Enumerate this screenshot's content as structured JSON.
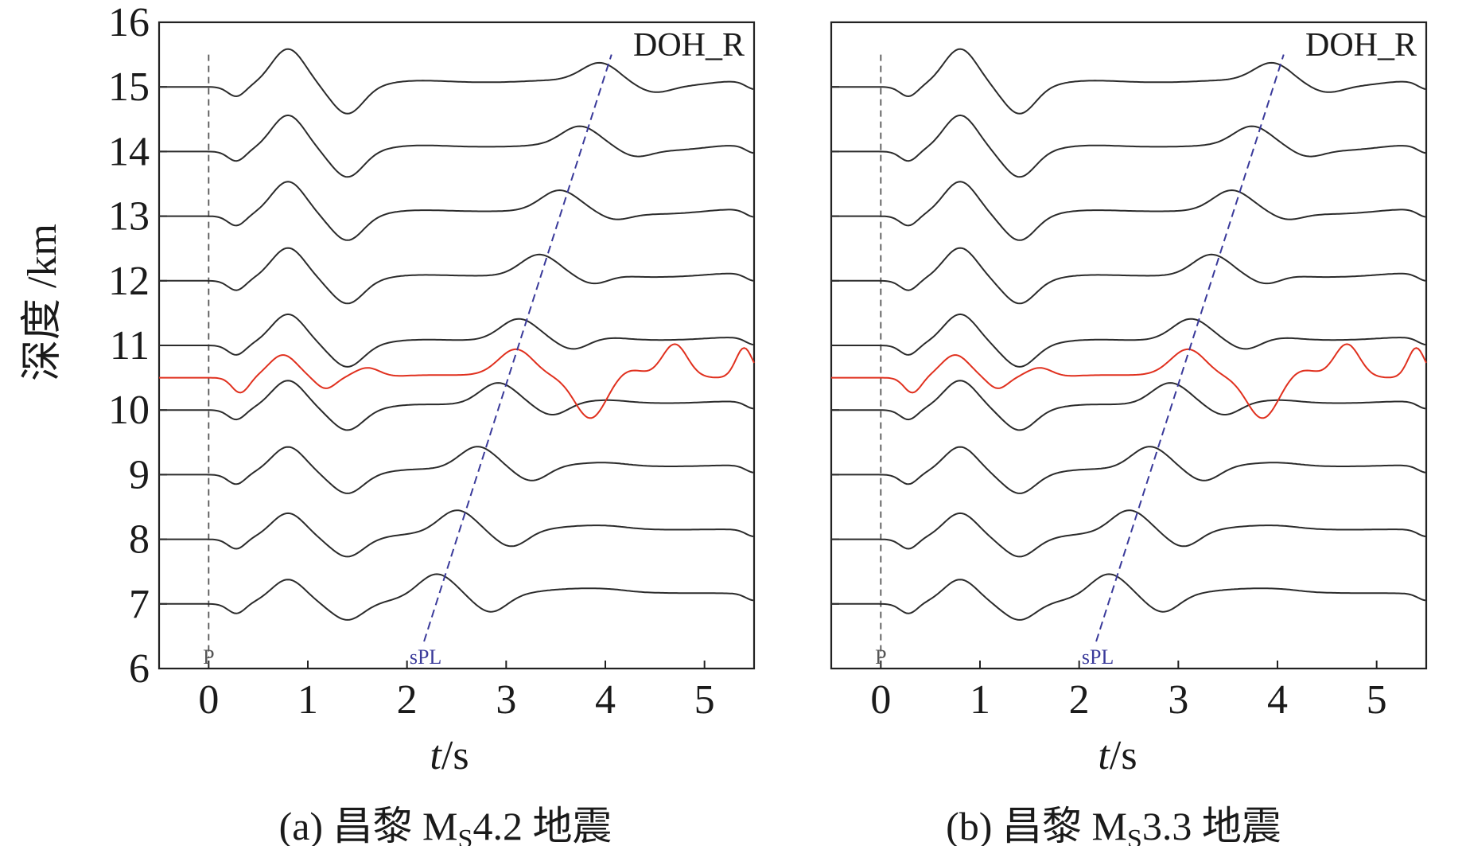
{
  "figure": {
    "ylabel": "深度 /km",
    "xlabel_italic": "t",
    "xlabel_unit": "/s"
  },
  "chart_data": [
    {
      "type": "line",
      "panel": "a",
      "caption": {
        "prefix": "(a) 昌黎 M",
        "sub": "S",
        "suffix": "4.2 地震"
      },
      "station": "DOH_R",
      "xlim": [
        -0.5,
        5.5
      ],
      "ylim": [
        6,
        16
      ],
      "xticks": [
        0,
        1,
        2,
        3,
        4,
        5
      ],
      "yticks": [
        6,
        7,
        8,
        9,
        10,
        11,
        12,
        13,
        14,
        15,
        16
      ],
      "depths": [
        7,
        8,
        9,
        10,
        11,
        12,
        13,
        14,
        15
      ],
      "observed_depth": 10.5,
      "observed_color": "#e0301e",
      "synthetic_color": "#2b2b2b",
      "phases": [
        {
          "name": "P",
          "t": 0,
          "color": "#555555"
        },
        {
          "name": "sPL",
          "t_at_7km": 2.3,
          "t_at_15km": 3.95,
          "color": "#3a3a9a"
        }
      ],
      "peak_a_first": 0.8,
      "peak_a_second": 2.4,
      "obs_peaks": [
        0.75,
        1.6,
        3.1,
        3.85,
        4.7,
        5.4
      ]
    },
    {
      "type": "line",
      "panel": "b",
      "caption": {
        "prefix": "(b) 昌黎 M",
        "sub": "S",
        "suffix": "3.3 地震"
      },
      "station": "DOH_R",
      "xlim": [
        -0.5,
        5.5
      ],
      "ylim": [
        6,
        16
      ],
      "xticks": [
        0,
        1,
        2,
        3,
        4,
        5
      ],
      "yticks": [
        6,
        7,
        8,
        9,
        10,
        11,
        12,
        13,
        14,
        15,
        16
      ],
      "depths": [
        7,
        8,
        9,
        10,
        11,
        12,
        13,
        14,
        15
      ],
      "observed_depth": 10.5,
      "observed_color": "#e0301e",
      "synthetic_color": "#2b2b2b",
      "phases": [
        {
          "name": "P",
          "t": 0,
          "color": "#555555"
        },
        {
          "name": "sPL",
          "t_at_7km": 2.3,
          "t_at_15km": 3.95,
          "color": "#3a3a9a"
        }
      ],
      "peak_a_first": 0.8,
      "peak_a_second": 2.4,
      "obs_peaks": [
        0.75,
        1.6,
        3.1,
        3.85,
        4.7,
        5.4
      ]
    }
  ]
}
